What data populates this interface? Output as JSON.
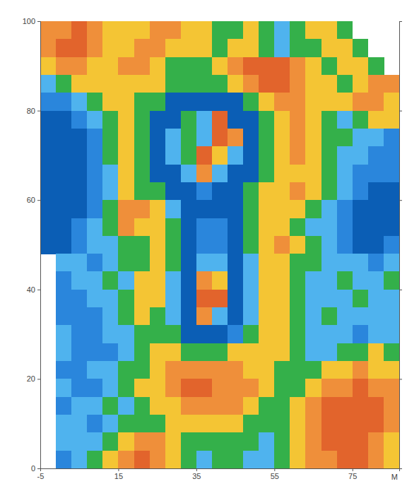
{
  "chart_data": {
    "type": "heatmap",
    "x_label": "M",
    "xlim": [
      -5,
      87
    ],
    "ylim": [
      0,
      100
    ],
    "xticks": [
      -5,
      15,
      35,
      55,
      75
    ],
    "yticks": [
      0,
      20,
      40,
      60,
      80,
      100
    ],
    "colors": [
      "#0b5eb5",
      "#2a86dc",
      "#4fb3ee",
      "#34b04a",
      "#f4c534",
      "#ef8f3a",
      "#e2642c"
    ],
    "x": [
      -5,
      -1,
      3,
      7,
      11,
      15,
      19,
      23,
      27,
      31,
      35,
      39,
      43,
      47,
      51,
      55,
      59,
      63,
      67,
      71,
      75,
      79,
      83,
      87
    ],
    "y": [
      100,
      96,
      92,
      88,
      84,
      80,
      76,
      72,
      68,
      64,
      60,
      56,
      52,
      48,
      44,
      40,
      36,
      32,
      28,
      24,
      20,
      16,
      12,
      8,
      4,
      0
    ],
    "values": [
      [
        5,
        5,
        6,
        5,
        4,
        4,
        4,
        5,
        5,
        4,
        4,
        3,
        3,
        4,
        3,
        2,
        3,
        4,
        4,
        3,
        null,
        null,
        null
      ],
      [
        5,
        6,
        6,
        5,
        4,
        4,
        5,
        5,
        4,
        4,
        4,
        3,
        4,
        4,
        3,
        2,
        3,
        3,
        4,
        4,
        3,
        null,
        null
      ],
      [
        4,
        5,
        5,
        4,
        4,
        5,
        5,
        4,
        3,
        3,
        3,
        4,
        5,
        6,
        6,
        6,
        5,
        4,
        3,
        4,
        4,
        3,
        null
      ],
      [
        2,
        3,
        4,
        4,
        4,
        4,
        4,
        4,
        3,
        3,
        3,
        3,
        4,
        5,
        6,
        6,
        5,
        4,
        4,
        3,
        4,
        5,
        5
      ],
      [
        1,
        1,
        2,
        3,
        4,
        4,
        3,
        3,
        0,
        0,
        0,
        0,
        0,
        3,
        4,
        5,
        5,
        4,
        4,
        4,
        5,
        5,
        4
      ],
      [
        0,
        0,
        1,
        2,
        3,
        4,
        3,
        0,
        0,
        3,
        2,
        6,
        0,
        0,
        3,
        4,
        5,
        4,
        3,
        2,
        3,
        4,
        4
      ],
      [
        0,
        0,
        0,
        1,
        3,
        4,
        3,
        0,
        2,
        3,
        2,
        6,
        5,
        0,
        3,
        4,
        5,
        4,
        3,
        3,
        2,
        2,
        1
      ],
      [
        0,
        0,
        0,
        1,
        3,
        4,
        3,
        0,
        2,
        3,
        6,
        4,
        2,
        0,
        3,
        4,
        5,
        4,
        3,
        2,
        2,
        1,
        1
      ],
      [
        0,
        0,
        0,
        1,
        2,
        4,
        3,
        0,
        0,
        2,
        5,
        2,
        0,
        0,
        3,
        4,
        4,
        4,
        3,
        2,
        1,
        1,
        1
      ],
      [
        0,
        0,
        0,
        1,
        2,
        4,
        3,
        3,
        0,
        0,
        1,
        0,
        0,
        3,
        4,
        4,
        5,
        4,
        3,
        2,
        1,
        0,
        0
      ],
      [
        0,
        0,
        0,
        1,
        3,
        5,
        5,
        4,
        2,
        0,
        0,
        0,
        0,
        3,
        4,
        4,
        4,
        3,
        2,
        1,
        0,
        0,
        0
      ],
      [
        0,
        0,
        1,
        2,
        3,
        5,
        4,
        4,
        3,
        0,
        1,
        1,
        0,
        3,
        4,
        4,
        3,
        2,
        2,
        1,
        0,
        0,
        0
      ],
      [
        0,
        0,
        1,
        2,
        2,
        3,
        3,
        4,
        3,
        0,
        1,
        1,
        0,
        3,
        4,
        5,
        4,
        3,
        2,
        1,
        0,
        0,
        1
      ],
      [
        null,
        2,
        2,
        1,
        2,
        3,
        3,
        4,
        3,
        0,
        2,
        2,
        0,
        2,
        4,
        4,
        3,
        3,
        2,
        2,
        2,
        1,
        2
      ],
      [
        null,
        1,
        2,
        2,
        3,
        2,
        4,
        4,
        2,
        0,
        5,
        4,
        0,
        2,
        4,
        4,
        3,
        2,
        2,
        3,
        2,
        2,
        3
      ],
      [
        null,
        1,
        1,
        2,
        2,
        3,
        4,
        4,
        2,
        0,
        6,
        6,
        0,
        2,
        4,
        4,
        3,
        2,
        2,
        2,
        3,
        2,
        2
      ],
      [
        null,
        1,
        1,
        1,
        2,
        3,
        4,
        3,
        2,
        0,
        5,
        2,
        0,
        2,
        4,
        4,
        3,
        2,
        3,
        2,
        2,
        2,
        2
      ],
      [
        null,
        2,
        1,
        1,
        2,
        2,
        3,
        3,
        3,
        0,
        0,
        0,
        1,
        3,
        4,
        4,
        3,
        2,
        2,
        2,
        1,
        2,
        2
      ],
      [
        null,
        2,
        1,
        1,
        1,
        2,
        3,
        4,
        4,
        3,
        3,
        3,
        4,
        4,
        4,
        4,
        3,
        2,
        2,
        3,
        3,
        4,
        3
      ],
      [
        null,
        1,
        1,
        2,
        2,
        3,
        3,
        4,
        5,
        5,
        5,
        5,
        5,
        4,
        4,
        3,
        3,
        3,
        4,
        4,
        5,
        4,
        4
      ],
      [
        null,
        2,
        1,
        1,
        2,
        3,
        4,
        4,
        5,
        6,
        6,
        5,
        5,
        5,
        4,
        3,
        3,
        4,
        5,
        5,
        6,
        5,
        5
      ],
      [
        null,
        1,
        2,
        2,
        3,
        2,
        3,
        4,
        4,
        5,
        5,
        5,
        5,
        4,
        3,
        3,
        4,
        5,
        6,
        6,
        6,
        6,
        5
      ],
      [
        null,
        2,
        2,
        1,
        2,
        3,
        3,
        3,
        4,
        4,
        4,
        4,
        4,
        3,
        3,
        3,
        4,
        5,
        6,
        6,
        6,
        6,
        5
      ],
      [
        null,
        2,
        2,
        2,
        3,
        4,
        5,
        5,
        4,
        3,
        3,
        3,
        3,
        3,
        2,
        3,
        4,
        5,
        6,
        6,
        6,
        5,
        4
      ],
      [
        null,
        1,
        2,
        3,
        4,
        5,
        6,
        5,
        4,
        3,
        2,
        3,
        3,
        2,
        2,
        3,
        4,
        5,
        5,
        6,
        6,
        5,
        4
      ]
    ]
  }
}
